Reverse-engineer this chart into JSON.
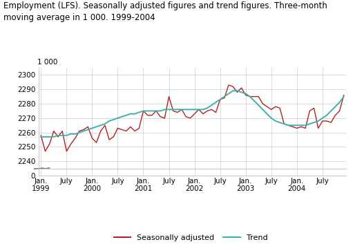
{
  "title": "Employment (LFS). Seasonally adjusted figures and trend figures. Three-month\nmoving average in 1 000. 1999-2004",
  "ylabel_unit": "1 000",
  "seasonally_adjusted_color": "#b22222",
  "trend_color": "#40b0a8",
  "background_color": "#ffffff",
  "grid_color": "#cccccc",
  "legend_seasonally": "Seasonally adjusted",
  "legend_trend": "Trend",
  "ylim_main": [
    2235,
    2305
  ],
  "yticks_main": [
    2240,
    2250,
    2260,
    2270,
    2280,
    2290,
    2300
  ],
  "seasonally_adjusted": [
    2258,
    2247,
    2252,
    2261,
    2257,
    2261,
    2247,
    2252,
    2256,
    2261,
    2262,
    2264,
    2256,
    2253,
    2261,
    2265,
    2255,
    2257,
    2263,
    2262,
    2261,
    2264,
    2261,
    2263,
    2275,
    2272,
    2272,
    2275,
    2271,
    2270,
    2285,
    2275,
    2274,
    2276,
    2271,
    2270,
    2273,
    2276,
    2273,
    2275,
    2276,
    2274,
    2283,
    2284,
    2293,
    2292,
    2288,
    2291,
    2286,
    2285,
    2285,
    2285,
    2280,
    2278,
    2276,
    2278,
    2277,
    2266,
    2265,
    2264,
    2263,
    2264,
    2263,
    2275,
    2277,
    2263,
    2268,
    2268,
    2267,
    2272,
    2275,
    2286
  ],
  "trend": [
    2257,
    2257,
    2257,
    2257,
    2258,
    2258,
    2258,
    2259,
    2259,
    2260,
    2261,
    2262,
    2263,
    2264,
    2265,
    2266,
    2268,
    2269,
    2270,
    2271,
    2272,
    2273,
    2273,
    2274,
    2275,
    2275,
    2275,
    2275,
    2275,
    2276,
    2276,
    2276,
    2276,
    2276,
    2276,
    2276,
    2276,
    2276,
    2276,
    2277,
    2279,
    2281,
    2283,
    2285,
    2287,
    2289,
    2289,
    2288,
    2287,
    2285,
    2282,
    2279,
    2276,
    2273,
    2270,
    2268,
    2267,
    2266,
    2265,
    2265,
    2265,
    2265,
    2265,
    2266,
    2267,
    2268,
    2270,
    2272,
    2275,
    2278,
    2281,
    2285
  ]
}
